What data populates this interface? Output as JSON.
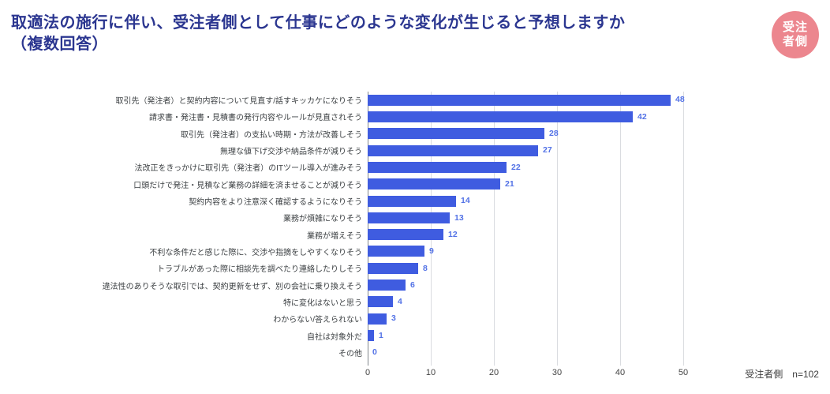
{
  "header": {
    "title_line1": "取適法の施行に伴い、受注者側として仕事にどのような変化が生じると予想しますか",
    "title_line2": "（複数回答）",
    "badge": {
      "line1": "受注",
      "line2": "者側"
    }
  },
  "colors": {
    "bar": "#3f5ce0",
    "value_label": "#5372e6",
    "title": "#2b3690",
    "badge_bg": "#ec868e",
    "badge_text": "#ffffff",
    "gridline": "#dadce0",
    "axis_line": "#80868b",
    "category_label": "#3c4043",
    "tick_label": "#444444"
  },
  "chart_data": {
    "type": "bar",
    "orientation": "horizontal",
    "title": "取適法の施行に伴い、受注者側として仕事にどのような変化が生じると予想しますか（複数回答）",
    "categories": [
      "取引先（発注者）と契約内容について見直す/話すキッカケになりそう",
      "請求書・発注書・見積書の発行内容やルールが見直されそう",
      "取引先（発注者）の支払い時期・方法が改善しそう",
      "無理な値下げ交渉や納品条件が減りそう",
      "法改正をきっかけに取引先（発注者）のITツール導入が進みそう",
      "口頭だけで発注・見積など業務の詳細を済ませることが減りそう",
      "契約内容をより注意深く確認するようになりそう",
      "業務が煩雑になりそう",
      "業務が増えそう",
      "不利な条件だと感じた際に、交渉や指摘をしやすくなりそう",
      "トラブルがあった際に相談先を調べたり連絡したりしそう",
      "違法性のありそうな取引では、契約更新をせず、別の会社に乗り換えそう",
      "特に変化はないと思う",
      "わからない/答えられない",
      "自社は対象外だ",
      "その他"
    ],
    "values": [
      48,
      42,
      28,
      27,
      22,
      21,
      14,
      13,
      12,
      9,
      8,
      6,
      4,
      3,
      1,
      0
    ],
    "xlim": [
      0,
      50
    ],
    "x_ticks": [
      0,
      10,
      20,
      30,
      40,
      50
    ],
    "grid": true,
    "legend": "none",
    "note": "受注者側　n=102"
  }
}
